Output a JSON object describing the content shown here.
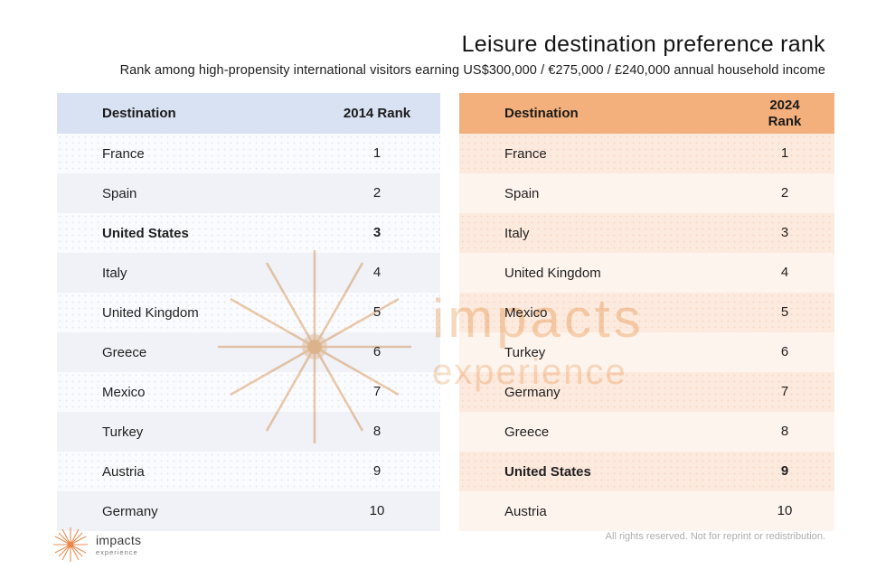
{
  "header": {
    "title": "Leisure destination preference rank",
    "subtitle": "Rank among high-propensity international visitors earning US$300,000 / €275,000 / £240,000 annual household income"
  },
  "chart_data": {
    "type": "table",
    "tables": [
      {
        "id": "2014",
        "columns": [
          "Destination",
          "2014 Rank"
        ],
        "header_bg": "#d9e2f2",
        "highlight": "United States",
        "rows": [
          {
            "destination": "France",
            "rank": "1"
          },
          {
            "destination": "Spain",
            "rank": "2"
          },
          {
            "destination": "United States",
            "rank": "3"
          },
          {
            "destination": "Italy",
            "rank": "4"
          },
          {
            "destination": "United Kingdom",
            "rank": "5"
          },
          {
            "destination": "Greece",
            "rank": "6"
          },
          {
            "destination": "Mexico",
            "rank": "7"
          },
          {
            "destination": "Turkey",
            "rank": "8"
          },
          {
            "destination": "Austria",
            "rank": "9"
          },
          {
            "destination": "Germany",
            "rank": "10"
          }
        ]
      },
      {
        "id": "2024",
        "columns": [
          "Destination",
          "2024 Rank"
        ],
        "header_bg": "#f4b07c",
        "highlight": "United States",
        "rows": [
          {
            "destination": "France",
            "rank": "1"
          },
          {
            "destination": "Spain",
            "rank": "2"
          },
          {
            "destination": "Italy",
            "rank": "3"
          },
          {
            "destination": "United Kingdom",
            "rank": "4"
          },
          {
            "destination": "Mexico",
            "rank": "5"
          },
          {
            "destination": "Turkey",
            "rank": "6"
          },
          {
            "destination": "Germany",
            "rank": "7"
          },
          {
            "destination": "Greece",
            "rank": "8"
          },
          {
            "destination": "United States",
            "rank": "9"
          },
          {
            "destination": "Austria",
            "rank": "10"
          }
        ]
      }
    ]
  },
  "watermark": {
    "line1": "impacts",
    "line2": "experience"
  },
  "logo": {
    "brand": "impacts",
    "brand_sub": "experience"
  },
  "footer": {
    "rights_notice": "All rights reserved. Not for reprint or redistribution."
  },
  "colors": {
    "header_2014_bg": "#d9e2f2",
    "header_2024_bg": "#f4b07c",
    "row_2014_light": "#fafbfe",
    "row_2014_dark": "#f0f2f7",
    "row_2024_dark": "#fdeade",
    "row_2024_light": "#fef4ee",
    "watermark": "#f6d9bb",
    "logo_orange": "#e8894b",
    "footer_text": "#adadad"
  }
}
